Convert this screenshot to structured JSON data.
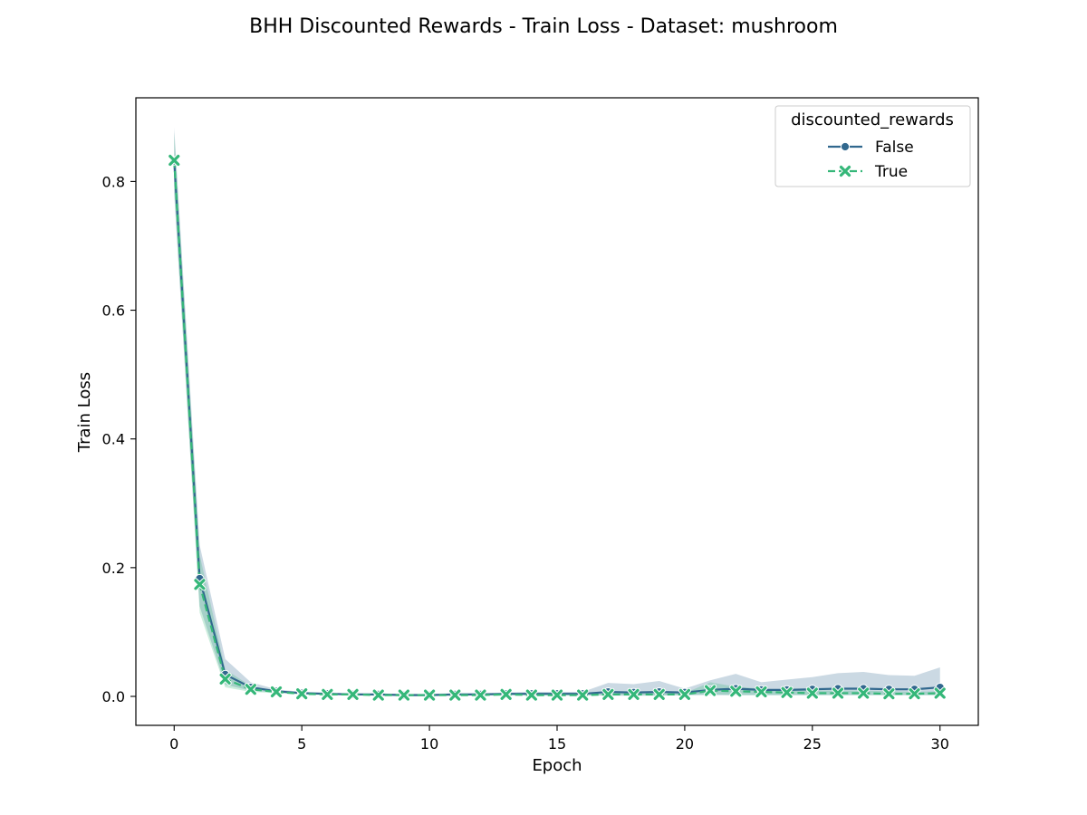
{
  "chart_data": {
    "type": "line",
    "title": "BHH Discounted Rewards - Train Loss - Dataset: mushroom",
    "xlabel": "Epoch",
    "ylabel": "Train Loss",
    "xlim": [
      -1.5,
      31.5
    ],
    "ylim": [
      -0.045,
      0.93
    ],
    "xticks": [
      0,
      5,
      10,
      15,
      20,
      25,
      30
    ],
    "yticks": [
      0.0,
      0.2,
      0.4,
      0.6,
      0.8
    ],
    "xtick_labels": [
      "0",
      "5",
      "10",
      "15",
      "20",
      "25",
      "30"
    ],
    "ytick_labels": [
      "0.0",
      "0.2",
      "0.4",
      "0.6",
      "0.8"
    ],
    "grid": false,
    "legend": {
      "title": "discounted_rewards",
      "placement": "top-right"
    },
    "x": [
      0,
      1,
      2,
      3,
      4,
      5,
      6,
      7,
      8,
      9,
      10,
      11,
      12,
      13,
      14,
      15,
      16,
      17,
      18,
      19,
      20,
      21,
      22,
      23,
      24,
      25,
      26,
      27,
      28,
      29,
      30
    ],
    "series": [
      {
        "name": "False",
        "color": "#31688e",
        "marker": "circle",
        "linestyle": "solid",
        "values": [
          0.832,
          0.183,
          0.034,
          0.014,
          0.008,
          0.005,
          0.004,
          0.003,
          0.003,
          0.002,
          0.002,
          0.003,
          0.003,
          0.004,
          0.004,
          0.004,
          0.004,
          0.007,
          0.006,
          0.007,
          0.006,
          0.01,
          0.012,
          0.01,
          0.01,
          0.011,
          0.012,
          0.012,
          0.011,
          0.011,
          0.014
        ],
        "ci_low": [
          0.78,
          0.14,
          0.018,
          0.009,
          0.006,
          0.004,
          0.003,
          0.002,
          0.002,
          0.001,
          0.001,
          0.002,
          0.002,
          0.002,
          0.002,
          0.002,
          0.002,
          0.001,
          0.001,
          0.001,
          0.002,
          0.002,
          0.002,
          0.002,
          0.002,
          0.002,
          0.002,
          0.002,
          0.002,
          0.002,
          0.002
        ],
        "ci_high": [
          0.884,
          0.235,
          0.058,
          0.022,
          0.011,
          0.007,
          0.006,
          0.005,
          0.004,
          0.004,
          0.004,
          0.005,
          0.005,
          0.006,
          0.007,
          0.007,
          0.007,
          0.021,
          0.019,
          0.024,
          0.012,
          0.025,
          0.035,
          0.022,
          0.026,
          0.03,
          0.036,
          0.038,
          0.033,
          0.032,
          0.045
        ]
      },
      {
        "name": "True",
        "color": "#35b779",
        "marker": "x",
        "linestyle": "dashed",
        "values": [
          0.833,
          0.174,
          0.027,
          0.011,
          0.007,
          0.004,
          0.003,
          0.003,
          0.002,
          0.002,
          0.002,
          0.002,
          0.002,
          0.003,
          0.002,
          0.002,
          0.002,
          0.003,
          0.003,
          0.003,
          0.003,
          0.009,
          0.008,
          0.007,
          0.006,
          0.005,
          0.005,
          0.005,
          0.004,
          0.004,
          0.005
        ],
        "ci_low": [
          0.79,
          0.13,
          0.014,
          0.007,
          0.005,
          0.003,
          0.002,
          0.002,
          0.001,
          0.001,
          0.001,
          0.001,
          0.001,
          0.002,
          0.001,
          0.001,
          0.001,
          0.002,
          0.002,
          0.002,
          0.002,
          0.003,
          0.002,
          0.002,
          0.002,
          0.002,
          0.002,
          0.002,
          0.002,
          0.002,
          0.002
        ],
        "ci_high": [
          0.876,
          0.22,
          0.042,
          0.016,
          0.009,
          0.006,
          0.005,
          0.004,
          0.003,
          0.003,
          0.003,
          0.003,
          0.003,
          0.004,
          0.004,
          0.004,
          0.004,
          0.005,
          0.005,
          0.005,
          0.005,
          0.022,
          0.015,
          0.012,
          0.01,
          0.009,
          0.009,
          0.009,
          0.008,
          0.007,
          0.008
        ]
      }
    ]
  }
}
